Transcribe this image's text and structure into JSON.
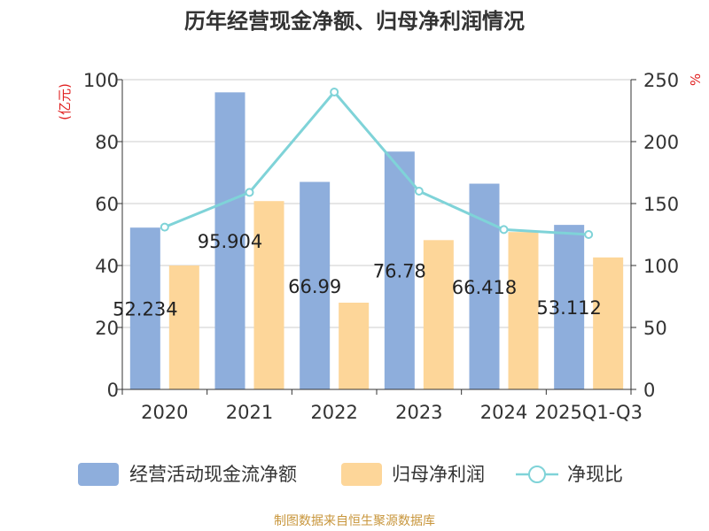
{
  "chart_data": {
    "type": "bar",
    "title": "历年经营现金净额、归母净利润情况",
    "categories": [
      "2020",
      "2021",
      "2022",
      "2023",
      "2024",
      "2025Q1-Q3"
    ],
    "left_axis": {
      "unit": "(亿元)",
      "ylim": [
        0,
        100
      ],
      "ticks": [
        "0",
        "20",
        "40",
        "60",
        "80",
        "100"
      ]
    },
    "right_axis": {
      "unit": "%",
      "ylim": [
        0,
        250
      ],
      "ticks": [
        "0",
        "50",
        "100",
        "150",
        "200",
        "250"
      ]
    },
    "series": [
      {
        "name": "经营活动现金流净额",
        "type": "bar",
        "axis": "left",
        "color": "#8eaedc",
        "values": [
          52.234,
          95.904,
          66.99,
          76.78,
          66.418,
          53.112
        ],
        "labels": [
          "52.234",
          "95.904",
          "66.99",
          "76.78",
          "66.418",
          "53.112"
        ]
      },
      {
        "name": "归母净利润",
        "type": "bar",
        "axis": "left",
        "color": "#fdd699",
        "values": [
          40,
          60.8,
          28,
          48.2,
          50.8,
          42.6
        ]
      },
      {
        "name": "净现比",
        "type": "line",
        "axis": "right",
        "color": "#7fd3d8",
        "values": [
          131,
          159,
          240,
          160,
          129,
          125
        ]
      }
    ],
    "grid": true,
    "legend_position": "bottom"
  },
  "footer": "制图数据来自恒生聚源数据库"
}
